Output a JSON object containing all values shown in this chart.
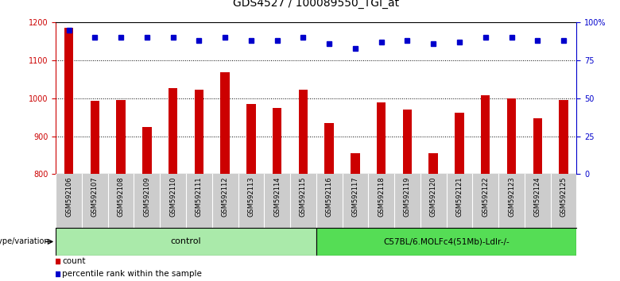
{
  "title": "GDS4527 / 100089550_TGI_at",
  "samples": [
    "GSM592106",
    "GSM592107",
    "GSM592108",
    "GSM592109",
    "GSM592110",
    "GSM592111",
    "GSM592112",
    "GSM592113",
    "GSM592114",
    "GSM592115",
    "GSM592116",
    "GSM592117",
    "GSM592118",
    "GSM592119",
    "GSM592120",
    "GSM592121",
    "GSM592122",
    "GSM592123",
    "GSM592124",
    "GSM592125"
  ],
  "bar_values": [
    1185,
    993,
    995,
    924,
    1028,
    1022,
    1068,
    985,
    975,
    1022,
    935,
    855,
    990,
    970,
    855,
    962,
    1008,
    1000,
    948,
    995
  ],
  "dot_values": [
    95,
    90,
    90,
    90,
    90,
    88,
    90,
    88,
    88,
    90,
    86,
    83,
    87,
    88,
    86,
    87,
    90,
    90,
    88,
    88
  ],
  "bar_color": "#cc0000",
  "dot_color": "#0000cc",
  "ylim_left": [
    800,
    1200
  ],
  "ylim_right": [
    0,
    100
  ],
  "yticks_left": [
    800,
    900,
    1000,
    1100,
    1200
  ],
  "yticks_right": [
    0,
    25,
    50,
    75,
    100
  ],
  "yticklabels_right": [
    "0",
    "25",
    "50",
    "75",
    "100%"
  ],
  "grid_values": [
    900,
    1000,
    1100
  ],
  "n_control": 10,
  "n_treatment": 10,
  "control_label": "control",
  "treatment_label": "C57BL/6.MOLFc4(51Mb)-Ldlr-/-",
  "group_label": "genotype/variation",
  "legend_count": "count",
  "legend_pct": "percentile rank within the sample",
  "control_color": "#aaeaaa",
  "treatment_color": "#55dd55",
  "xtick_bg_color": "#cccccc",
  "title_fontsize": 10,
  "tick_fontsize": 7,
  "axis_color_left": "#cc0000",
  "axis_color_right": "#0000cc"
}
